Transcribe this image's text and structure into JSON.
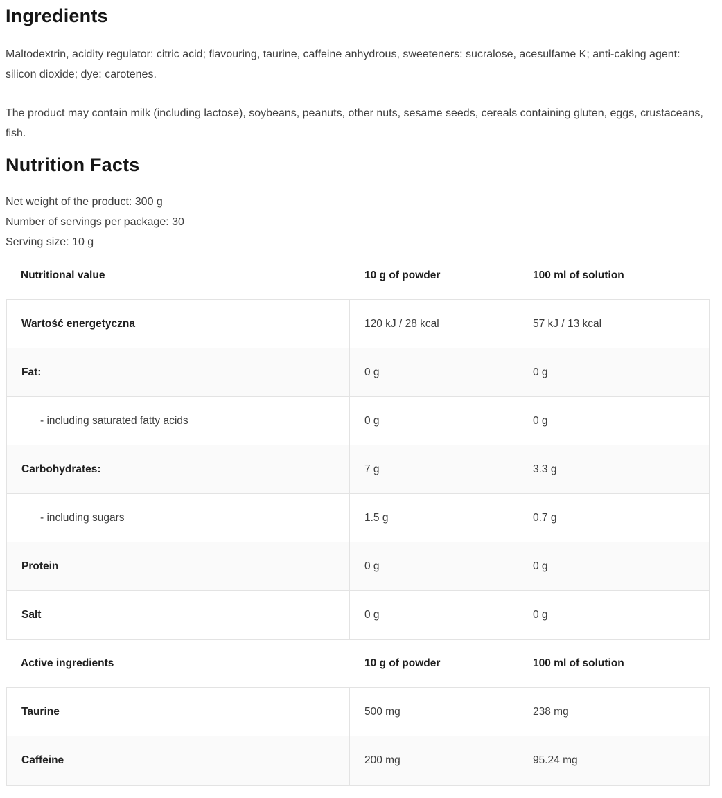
{
  "ingredients": {
    "title": "Ingredients",
    "paragraph1": "Maltodextrin, acidity regulator: citric acid; flavouring, taurine, caffeine anhydrous, sweeteners: sucralose, acesulfame K; anti-caking agent: silicon dioxide; dye: carotenes.",
    "paragraph2": "The product may contain milk (including lactose), soybeans, peanuts, other nuts, sesame seeds, cereals containing gluten, eggs, crustaceans, fish."
  },
  "nutrition": {
    "title": "Nutrition Facts",
    "meta": {
      "net_weight": "Net weight of the product: 300 g",
      "servings": "Number of servings per package: 30",
      "serving_size": "Serving size: 10 g"
    },
    "nutritional_table": {
      "headers": [
        "Nutritional value",
        "10 g of powder",
        "100 ml of solution"
      ],
      "rows": [
        {
          "label": "Wartość energetyczna",
          "powder": "120 kJ / 28 kcal",
          "solution": "57 kJ / 13 kcal"
        },
        {
          "label": "Fat:",
          "powder": "0 g",
          "solution": "0 g"
        },
        {
          "label": "- including saturated fatty acids",
          "powder": "0 g",
          "solution": "0 g"
        },
        {
          "label": "Carbohydrates:",
          "powder": "7 g",
          "solution": "3.3 g"
        },
        {
          "label": "- including sugars",
          "powder": "1.5 g",
          "solution": "0.7 g"
        },
        {
          "label": "Protein",
          "powder": "0 g",
          "solution": "0 g"
        },
        {
          "label": "Salt",
          "powder": "0 g",
          "solution": "0 g"
        }
      ]
    },
    "active_table": {
      "headers": [
        "Active ingredients",
        "10 g of powder",
        "100 ml of solution"
      ],
      "rows": [
        {
          "label": "Taurine",
          "powder": "500 mg",
          "solution": "238 mg"
        },
        {
          "label": "Caffeine",
          "powder": "200 mg",
          "solution": "95.24 mg"
        }
      ]
    }
  },
  "colors": {
    "border": "#e3e3e3",
    "row_stripe": "#fafafa",
    "heading_text": "#161616",
    "body_text": "#3f3f3f",
    "background": "#ffffff"
  }
}
